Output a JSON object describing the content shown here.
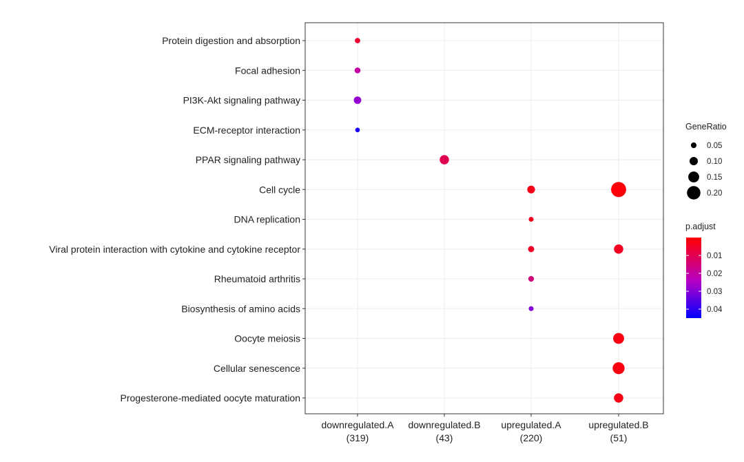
{
  "chart_data": {
    "type": "scatter",
    "title": "",
    "xlabel": "",
    "ylabel": "",
    "grid": true,
    "legend_placement": "right",
    "x_categories": [
      {
        "name": "downregulated.A",
        "count": "(319)"
      },
      {
        "name": "downregulated.B",
        "count": "(43)"
      },
      {
        "name": "upregulated.A",
        "count": "(220)"
      },
      {
        "name": "upregulated.B",
        "count": "(51)"
      }
    ],
    "y_categories": [
      "Protein digestion and absorption",
      "Focal adhesion",
      "PI3K-Akt signaling pathway",
      "ECM-receptor interaction",
      "PPAR signaling pathway",
      "Cell cycle",
      "DNA replication",
      "Viral protein interaction with cytokine and cytokine receptor",
      "Rheumatoid arthritis",
      "Biosynthesis of amino acids",
      "Oocyte meiosis",
      "Cellular senescence",
      "Progesterone-mediated oocyte maturation"
    ],
    "points": [
      {
        "x": "downregulated.A",
        "y": "Protein digestion and absorption",
        "gene_ratio": 0.045,
        "p_adjust": 0.006
      },
      {
        "x": "downregulated.A",
        "y": "Focal adhesion",
        "gene_ratio": 0.055,
        "p_adjust": 0.02
      },
      {
        "x": "downregulated.A",
        "y": "PI3K-Akt signaling pathway",
        "gene_ratio": 0.085,
        "p_adjust": 0.028
      },
      {
        "x": "downregulated.A",
        "y": "ECM-receptor interaction",
        "gene_ratio": 0.03,
        "p_adjust": 0.042
      },
      {
        "x": "downregulated.B",
        "y": "PPAR signaling pathway",
        "gene_ratio": 0.12,
        "p_adjust": 0.01
      },
      {
        "x": "upregulated.A",
        "y": "Cell cycle",
        "gene_ratio": 0.09,
        "p_adjust": 0.003
      },
      {
        "x": "upregulated.B",
        "y": "Cell cycle",
        "gene_ratio": 0.23,
        "p_adjust": 0.001
      },
      {
        "x": "upregulated.A",
        "y": "DNA replication",
        "gene_ratio": 0.035,
        "p_adjust": 0.004
      },
      {
        "x": "upregulated.A",
        "y": "Viral protein interaction with cytokine and cytokine receptor",
        "gene_ratio": 0.06,
        "p_adjust": 0.005
      },
      {
        "x": "upregulated.B",
        "y": "Viral protein interaction with cytokine and cytokine receptor",
        "gene_ratio": 0.12,
        "p_adjust": 0.004
      },
      {
        "x": "upregulated.A",
        "y": "Rheumatoid arthritis",
        "gene_ratio": 0.05,
        "p_adjust": 0.015
      },
      {
        "x": "upregulated.A",
        "y": "Biosynthesis of amino acids",
        "gene_ratio": 0.035,
        "p_adjust": 0.03
      },
      {
        "x": "upregulated.B",
        "y": "Oocyte meiosis",
        "gene_ratio": 0.15,
        "p_adjust": 0.002
      },
      {
        "x": "upregulated.B",
        "y": "Cellular senescence",
        "gene_ratio": 0.17,
        "p_adjust": 0.002
      },
      {
        "x": "upregulated.B",
        "y": "Progesterone-mediated oocyte maturation",
        "gene_ratio": 0.12,
        "p_adjust": 0.003
      }
    ],
    "size_legend": {
      "title": "GeneRatio",
      "values": [
        0.05,
        0.1,
        0.15,
        0.2
      ],
      "labels": [
        "0.05",
        "0.10",
        "0.15",
        "0.20"
      ]
    },
    "color_legend": {
      "title": "p.adjust",
      "range": [
        0.0,
        0.045
      ],
      "ticks": [
        0.01,
        0.02,
        0.03,
        0.04
      ],
      "tick_labels": [
        "0.01",
        "0.02",
        "0.03",
        "0.04"
      ],
      "low_color": "#ff0000",
      "mid_color": "#b300c8",
      "high_color": "#0000ff"
    },
    "colors": {
      "panel_border": "#333333",
      "grid": "#ebebeb",
      "text": "#222222",
      "legend_point": "#000000"
    }
  }
}
